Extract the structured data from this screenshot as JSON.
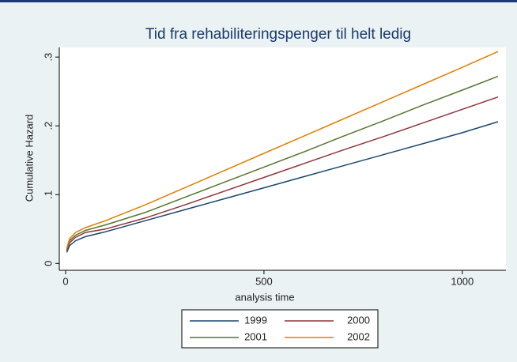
{
  "chart_data": {
    "type": "line",
    "title": "Tid fra rehabiliteringspenger til helt ledig",
    "xlabel": "analysis time",
    "ylabel": "Cumulative Hazard",
    "x": [
      3,
      10,
      25,
      50,
      100,
      200,
      300,
      400,
      500,
      600,
      700,
      800,
      900,
      1000,
      1090
    ],
    "series": [
      {
        "name": "1999",
        "color": "#1a476f",
        "values": [
          0.016,
          0.026,
          0.033,
          0.039,
          0.046,
          0.062,
          0.078,
          0.094,
          0.11,
          0.126,
          0.142,
          0.158,
          0.174,
          0.19,
          0.206
        ]
      },
      {
        "name": "2000",
        "color": "#90353b",
        "values": [
          0.018,
          0.03,
          0.038,
          0.045,
          0.05,
          0.066,
          0.085,
          0.105,
          0.125,
          0.145,
          0.165,
          0.184,
          0.204,
          0.224,
          0.242
        ]
      },
      {
        "name": "2001",
        "color": "#55752f",
        "values": [
          0.02,
          0.033,
          0.041,
          0.048,
          0.056,
          0.074,
          0.096,
          0.118,
          0.14,
          0.162,
          0.185,
          0.207,
          0.23,
          0.252,
          0.272
        ]
      },
      {
        "name": "2002",
        "color": "#e37e00",
        "values": [
          0.022,
          0.036,
          0.045,
          0.052,
          0.062,
          0.085,
          0.11,
          0.135,
          0.16,
          0.185,
          0.21,
          0.235,
          0.26,
          0.285,
          0.308
        ]
      }
    ],
    "xlim": [
      -16,
      1110
    ],
    "xticks": [
      0,
      500,
      1000
    ],
    "ylim": [
      -0.01,
      0.314
    ],
    "yticks": [
      0,
      {
        "value": 0.1,
        "label": ".1"
      },
      {
        "value": 0.2,
        "label": ".2"
      },
      {
        "value": 0.3,
        "label": ".3"
      }
    ],
    "grid": false,
    "legend": "bottom"
  }
}
